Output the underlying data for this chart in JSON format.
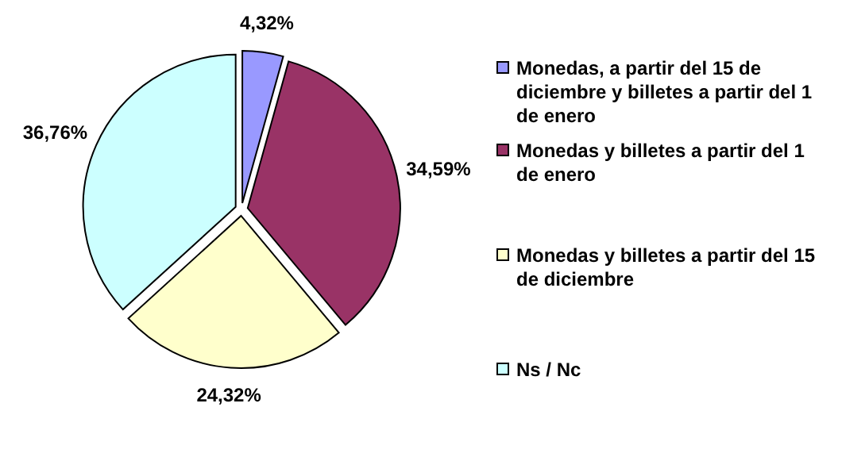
{
  "chart_data": {
    "type": "pie",
    "categories": [
      "Monedas, a partir del 15 de diciembre y billetes a partir del 1 de enero",
      "Monedas y billetes a partir del 1 de enero",
      "Monedas y billetes a partir del 15 de diciembre",
      "Ns / Nc"
    ],
    "values": [
      4.32,
      34.59,
      24.32,
      36.76
    ],
    "value_labels": [
      "4,32%",
      "34,59%",
      "24,32%",
      "36,76%"
    ],
    "colors": [
      "#9999ff",
      "#993366",
      "#ffffcc",
      "#ccffff"
    ],
    "legend": "right"
  }
}
